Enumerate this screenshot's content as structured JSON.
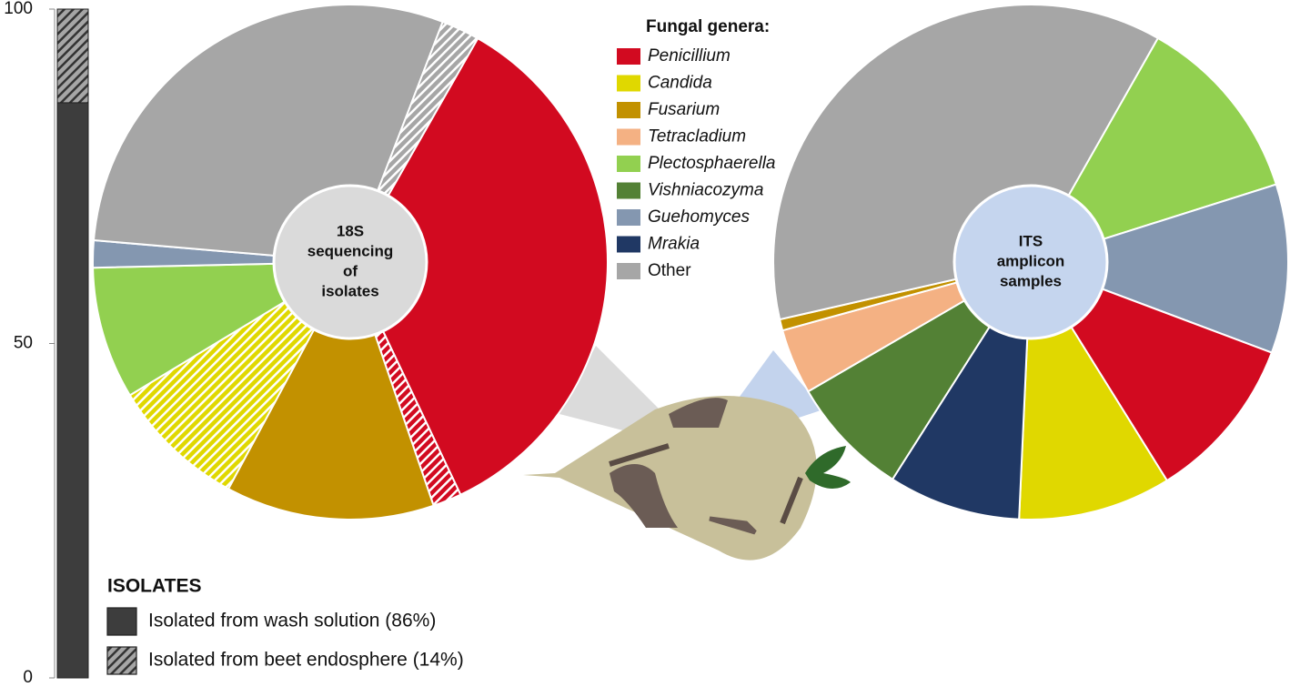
{
  "chart_data": [
    {
      "type": "bar",
      "categories": [
        null
      ],
      "ylim": [
        0,
        100
      ],
      "yticks": [
        0,
        50,
        100
      ],
      "series": [
        {
          "name": "Isolated from wash solution (86%)",
          "color": "#3d3d3d",
          "hatched": false,
          "values": [
            86
          ]
        },
        {
          "name": "Isolated from beet endosphere (14%)",
          "color": "#a6a6a6",
          "hatched": true,
          "values": [
            14
          ]
        }
      ],
      "legend_title": "ISOLATES"
    },
    {
      "type": "pie",
      "center_label": [
        "18S",
        "sequencing",
        "of",
        "isolates"
      ],
      "center_color": "#dadada",
      "startangle": 29.7,
      "categories": [
        "Penicillium",
        "Penicillium",
        "Fusarium",
        "Candida",
        "Plectosphaerella",
        "Guehomyces",
        "Other",
        "Other"
      ],
      "hatched": [
        false,
        true,
        false,
        true,
        false,
        false,
        false,
        true
      ],
      "values": [
        34.7,
        1.8,
        13.1,
        8.5,
        8.3,
        1.7,
        29.5,
        2.4
      ]
    },
    {
      "type": "pie",
      "center_label": [
        "ITS",
        "amplicon",
        "samples"
      ],
      "center_color": "#c5d5ee",
      "startangle": 29.6,
      "categories": [
        "Plectosphaerella",
        "Guehomyces",
        "Penicillium",
        "Candida",
        "Mrakia",
        "Vishniacozyma",
        "Tetracladium",
        "Fusarium",
        "Other"
      ],
      "hatched": [
        false,
        false,
        false,
        false,
        false,
        false,
        false,
        false,
        false
      ],
      "values": [
        11.9,
        10.6,
        10.4,
        9.6,
        8.3,
        7.6,
        4.1,
        0.7,
        36.8
      ]
    }
  ],
  "legend": {
    "title": "Fungal genera:",
    "names": [
      "Penicillium",
      "Candida",
      "Fusarium",
      "Tetracladium",
      "Plectosphaerella",
      "Vishniacozyma",
      "Guehomyces",
      "Mrakia",
      "Other"
    ],
    "colors": [
      "#d20a20",
      "#e0d800",
      "#c29100",
      "#f4b183",
      "#92d050",
      "#538135",
      "#8497b0",
      "#203864",
      "#a6a6a6"
    ],
    "italic": [
      true,
      true,
      true,
      true,
      true,
      true,
      true,
      true,
      false
    ]
  }
}
